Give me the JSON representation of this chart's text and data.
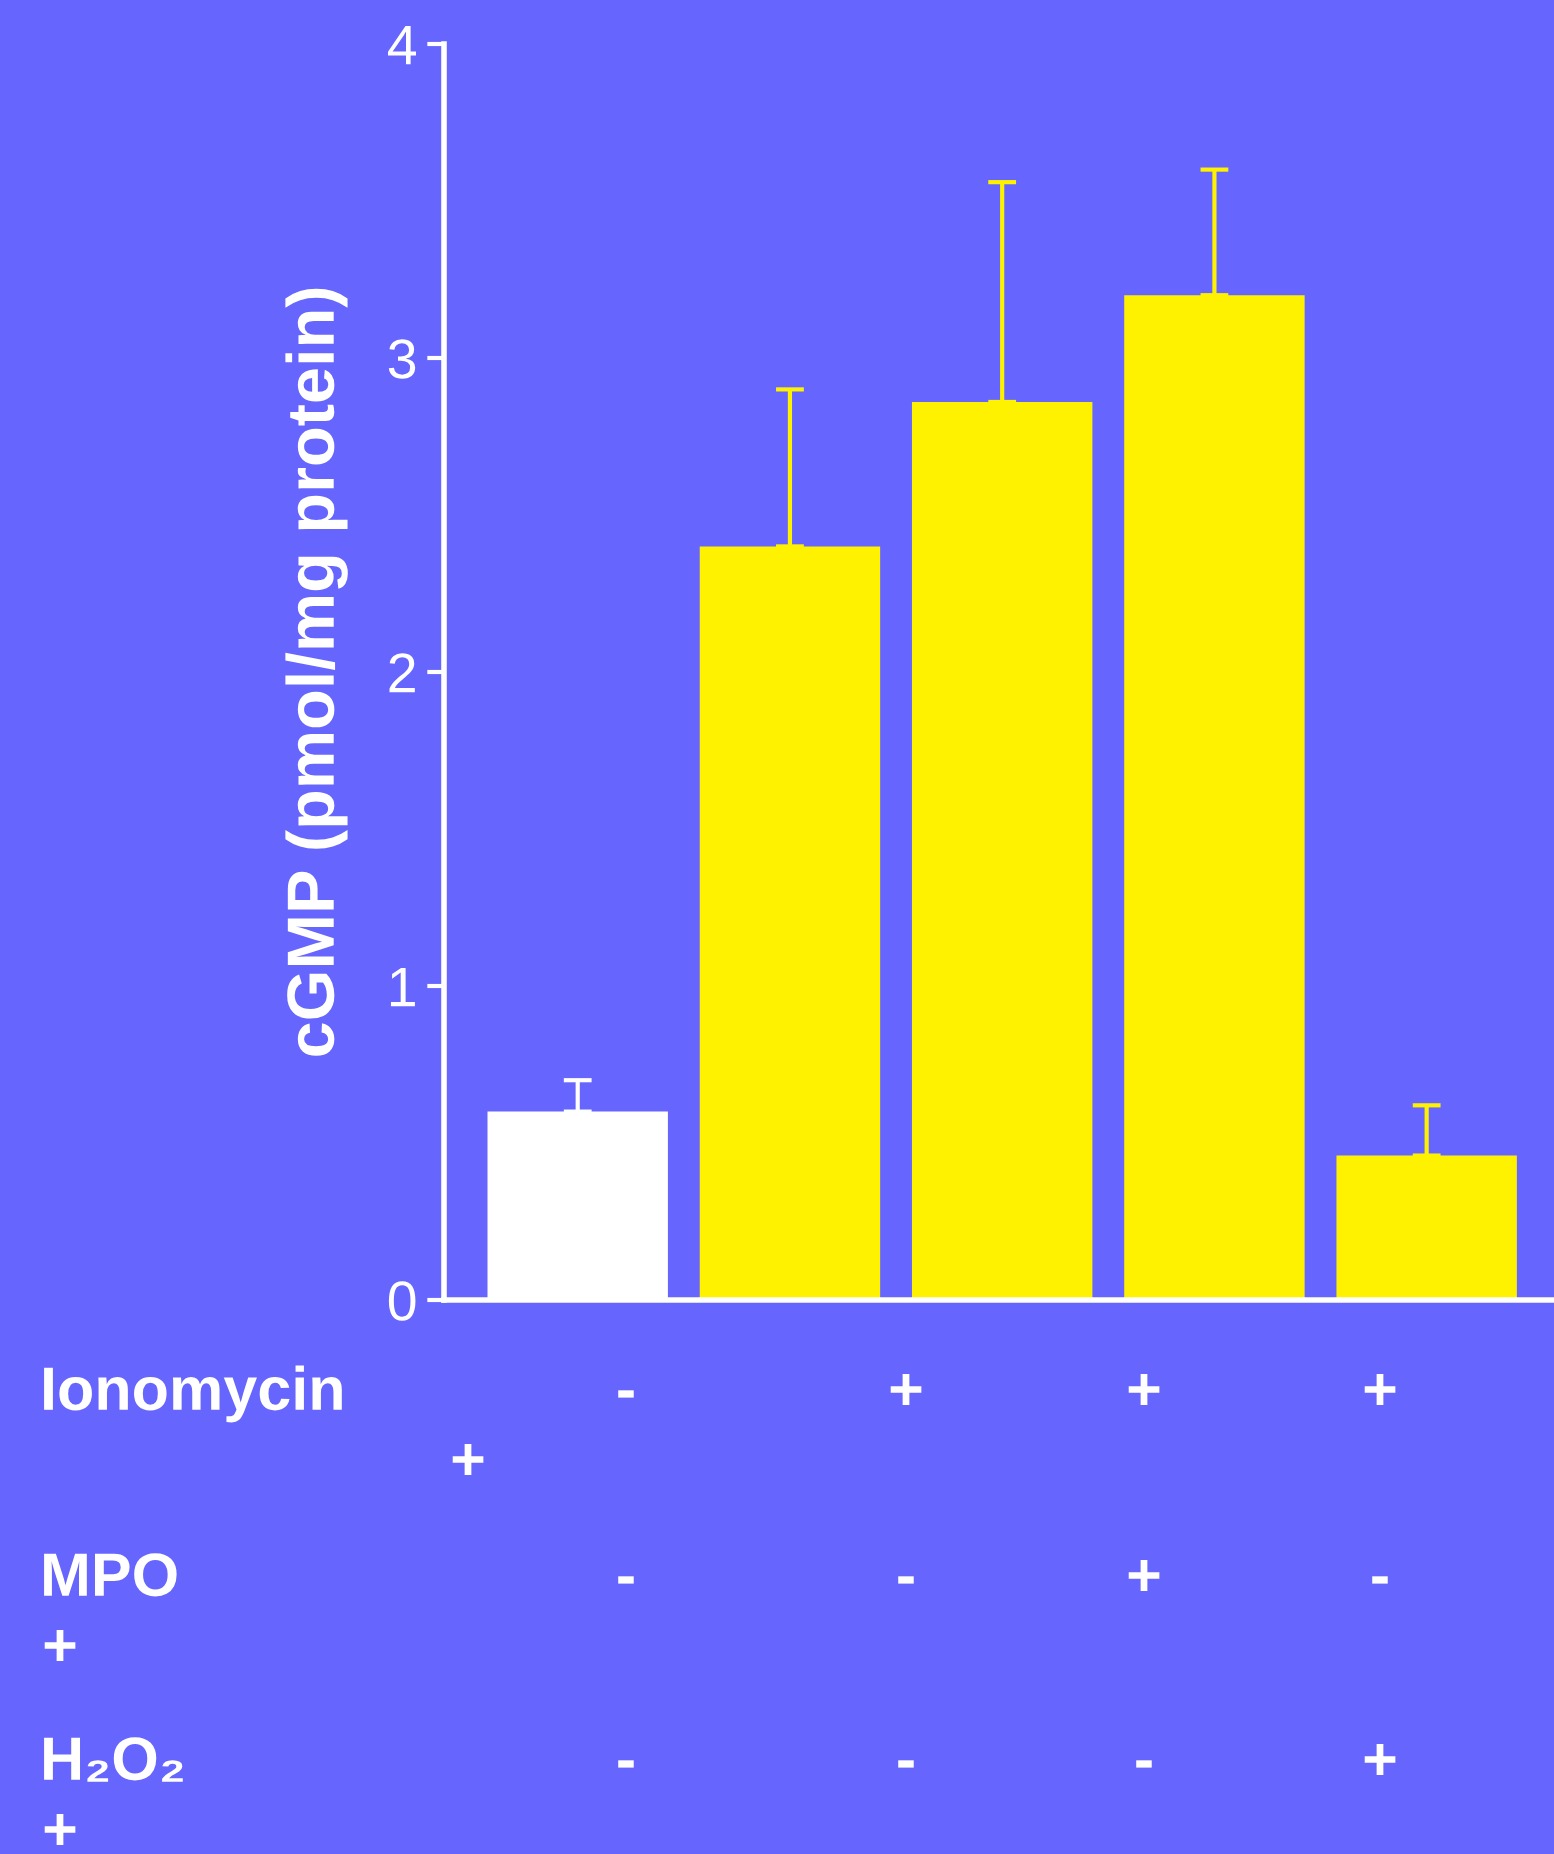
{
  "chart_data": {
    "type": "bar",
    "ylabel": "cGMP (pmol/mg protein)",
    "categories": [
      null,
      null,
      null,
      null,
      null
    ],
    "values": [
      0.6,
      2.4,
      2.86,
      3.2,
      0.46
    ],
    "colors": [
      "#ffffff",
      "#fff200",
      "#fff200",
      "#fff200",
      "#fff200"
    ],
    "errors": [
      [
        0.6,
        0.7
      ],
      [
        2.4,
        2.9
      ],
      [
        2.86,
        3.56
      ],
      [
        3.2,
        3.6
      ],
      [
        0.46,
        0.62
      ]
    ],
    "ylim": [
      0,
      4
    ],
    "yticks": [
      0,
      1,
      2,
      3,
      4
    ],
    "grid": false,
    "annotations": [
      "Ionomycin",
      "-",
      "+",
      "+",
      "+",
      "+",
      "MPO",
      "-",
      "-",
      "+",
      "-",
      "+",
      "H₂O₂",
      "-",
      "-",
      "-",
      "+",
      "+"
    ]
  }
}
